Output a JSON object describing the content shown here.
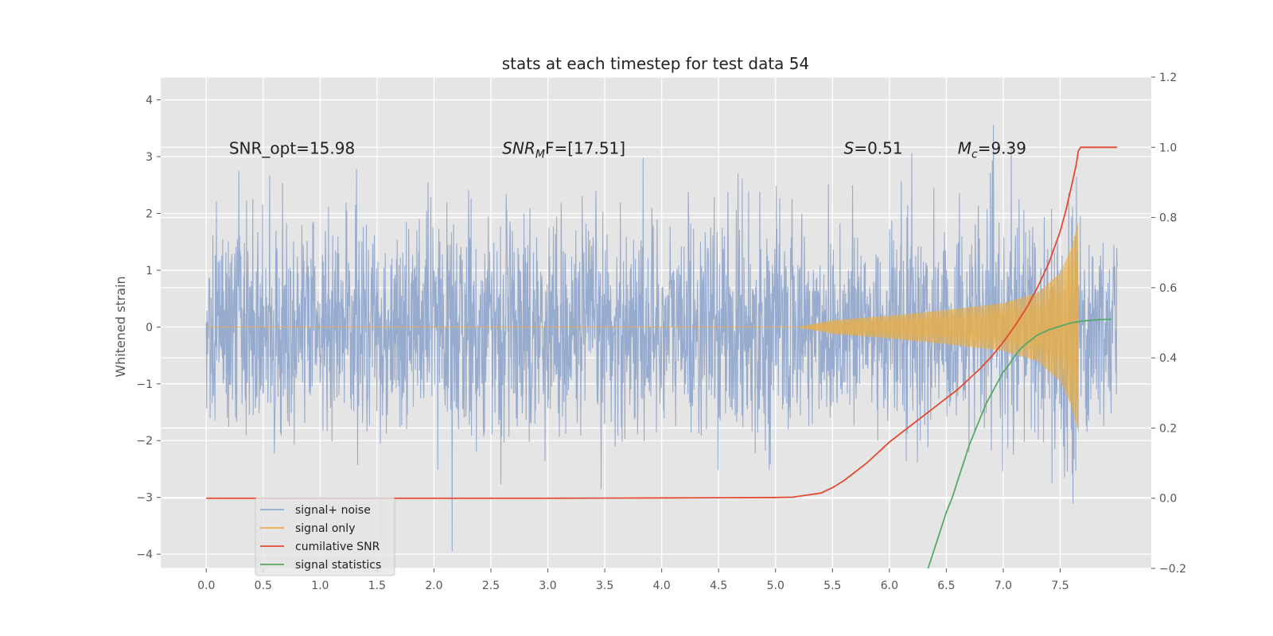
{
  "chart_data": {
    "type": "line",
    "title": "stats at each timestep for test data 54",
    "xlabel": "",
    "ylabel": "Whitened strain",
    "y2label": "",
    "xlim": [
      -0.4,
      8.3
    ],
    "ylim": [
      -4.25,
      4.4
    ],
    "y2lim": [
      -0.2,
      1.2
    ],
    "xticks": [
      "0.0",
      "0.5",
      "1.0",
      "1.5",
      "2.0",
      "2.5",
      "3.0",
      "3.5",
      "4.0",
      "4.5",
      "5.0",
      "5.5",
      "6.0",
      "6.5",
      "7.0",
      "7.5"
    ],
    "yticks": [
      "−4",
      "−3",
      "−2",
      "−1",
      "0",
      "1",
      "2",
      "3",
      "4"
    ],
    "y2ticks": [
      "−0.2",
      "0.0",
      "0.2",
      "0.4",
      "0.6",
      "0.8",
      "1.0",
      "1.2"
    ],
    "grid": true,
    "legend_position": "lower-left",
    "annotations": [
      {
        "text": "SNR_opt=15.98",
        "x": 0.2,
        "y": 3.15
      },
      {
        "main": "SNR",
        "sub": "M",
        "rest": "F=[17.51]",
        "x": 2.6,
        "y": 3.15
      },
      {
        "main": "S",
        "sub": "",
        "rest": "=0.51",
        "x": 5.6,
        "y": 3.15
      },
      {
        "main": "M",
        "sub": "c",
        "rest": "=9.39",
        "x": 6.6,
        "y": 3.15
      }
    ],
    "series": [
      {
        "name": "signal+ noise",
        "color": "#92a8cc",
        "axis": "left",
        "description": "white gaussian noise plus chirp, sampled 0.0 to 8.0",
        "x_range": [
          0.0,
          8.0
        ],
        "noise_sigma": 1.0
      },
      {
        "name": "signal only",
        "color": "#e5ae4a",
        "axis": "left",
        "x_range": [
          0.0,
          7.66
        ],
        "envelope": {
          "x": [
            5.2,
            5.5,
            6.0,
            6.5,
            7.0,
            7.3,
            7.5,
            7.6,
            7.66
          ],
          "y": [
            0.0,
            0.12,
            0.2,
            0.3,
            0.42,
            0.6,
            0.95,
            1.4,
            1.85
          ]
        }
      },
      {
        "name": "cumilative SNR",
        "color": "#e24a33",
        "axis": "right",
        "x": [
          0.0,
          1.0,
          2.0,
          3.0,
          4.0,
          5.0,
          5.15,
          5.3,
          5.4,
          5.5,
          5.6,
          5.7,
          5.8,
          5.9,
          6.0,
          6.1,
          6.2,
          6.3,
          6.4,
          6.5,
          6.6,
          6.7,
          6.8,
          6.9,
          7.0,
          7.1,
          7.2,
          7.3,
          7.4,
          7.5,
          7.55,
          7.6,
          7.64,
          7.66,
          7.68,
          8.0
        ],
        "y": [
          0.0,
          0.0,
          0.0,
          0.0,
          0.001,
          0.002,
          0.003,
          0.01,
          0.015,
          0.03,
          0.05,
          0.075,
          0.1,
          0.13,
          0.16,
          0.185,
          0.21,
          0.235,
          0.26,
          0.285,
          0.31,
          0.34,
          0.37,
          0.405,
          0.445,
          0.49,
          0.54,
          0.6,
          0.67,
          0.76,
          0.82,
          0.89,
          0.95,
          0.99,
          1.0,
          1.0
        ]
      },
      {
        "name": "signal statistics",
        "color": "#55a868",
        "axis": "right",
        "x": [
          6.34,
          6.4,
          6.45,
          6.5,
          6.55,
          6.6,
          6.65,
          6.7,
          6.75,
          6.8,
          6.85,
          6.9,
          6.95,
          7.0,
          7.05,
          7.1,
          7.15,
          7.2,
          7.3,
          7.4,
          7.5,
          7.6,
          7.7,
          7.8,
          7.9,
          7.95
        ],
        "y": [
          -0.2,
          -0.14,
          -0.09,
          -0.04,
          0.0,
          0.05,
          0.1,
          0.15,
          0.19,
          0.23,
          0.27,
          0.3,
          0.33,
          0.36,
          0.38,
          0.405,
          0.425,
          0.44,
          0.465,
          0.48,
          0.49,
          0.5,
          0.505,
          0.508,
          0.51,
          0.51
        ]
      }
    ]
  }
}
